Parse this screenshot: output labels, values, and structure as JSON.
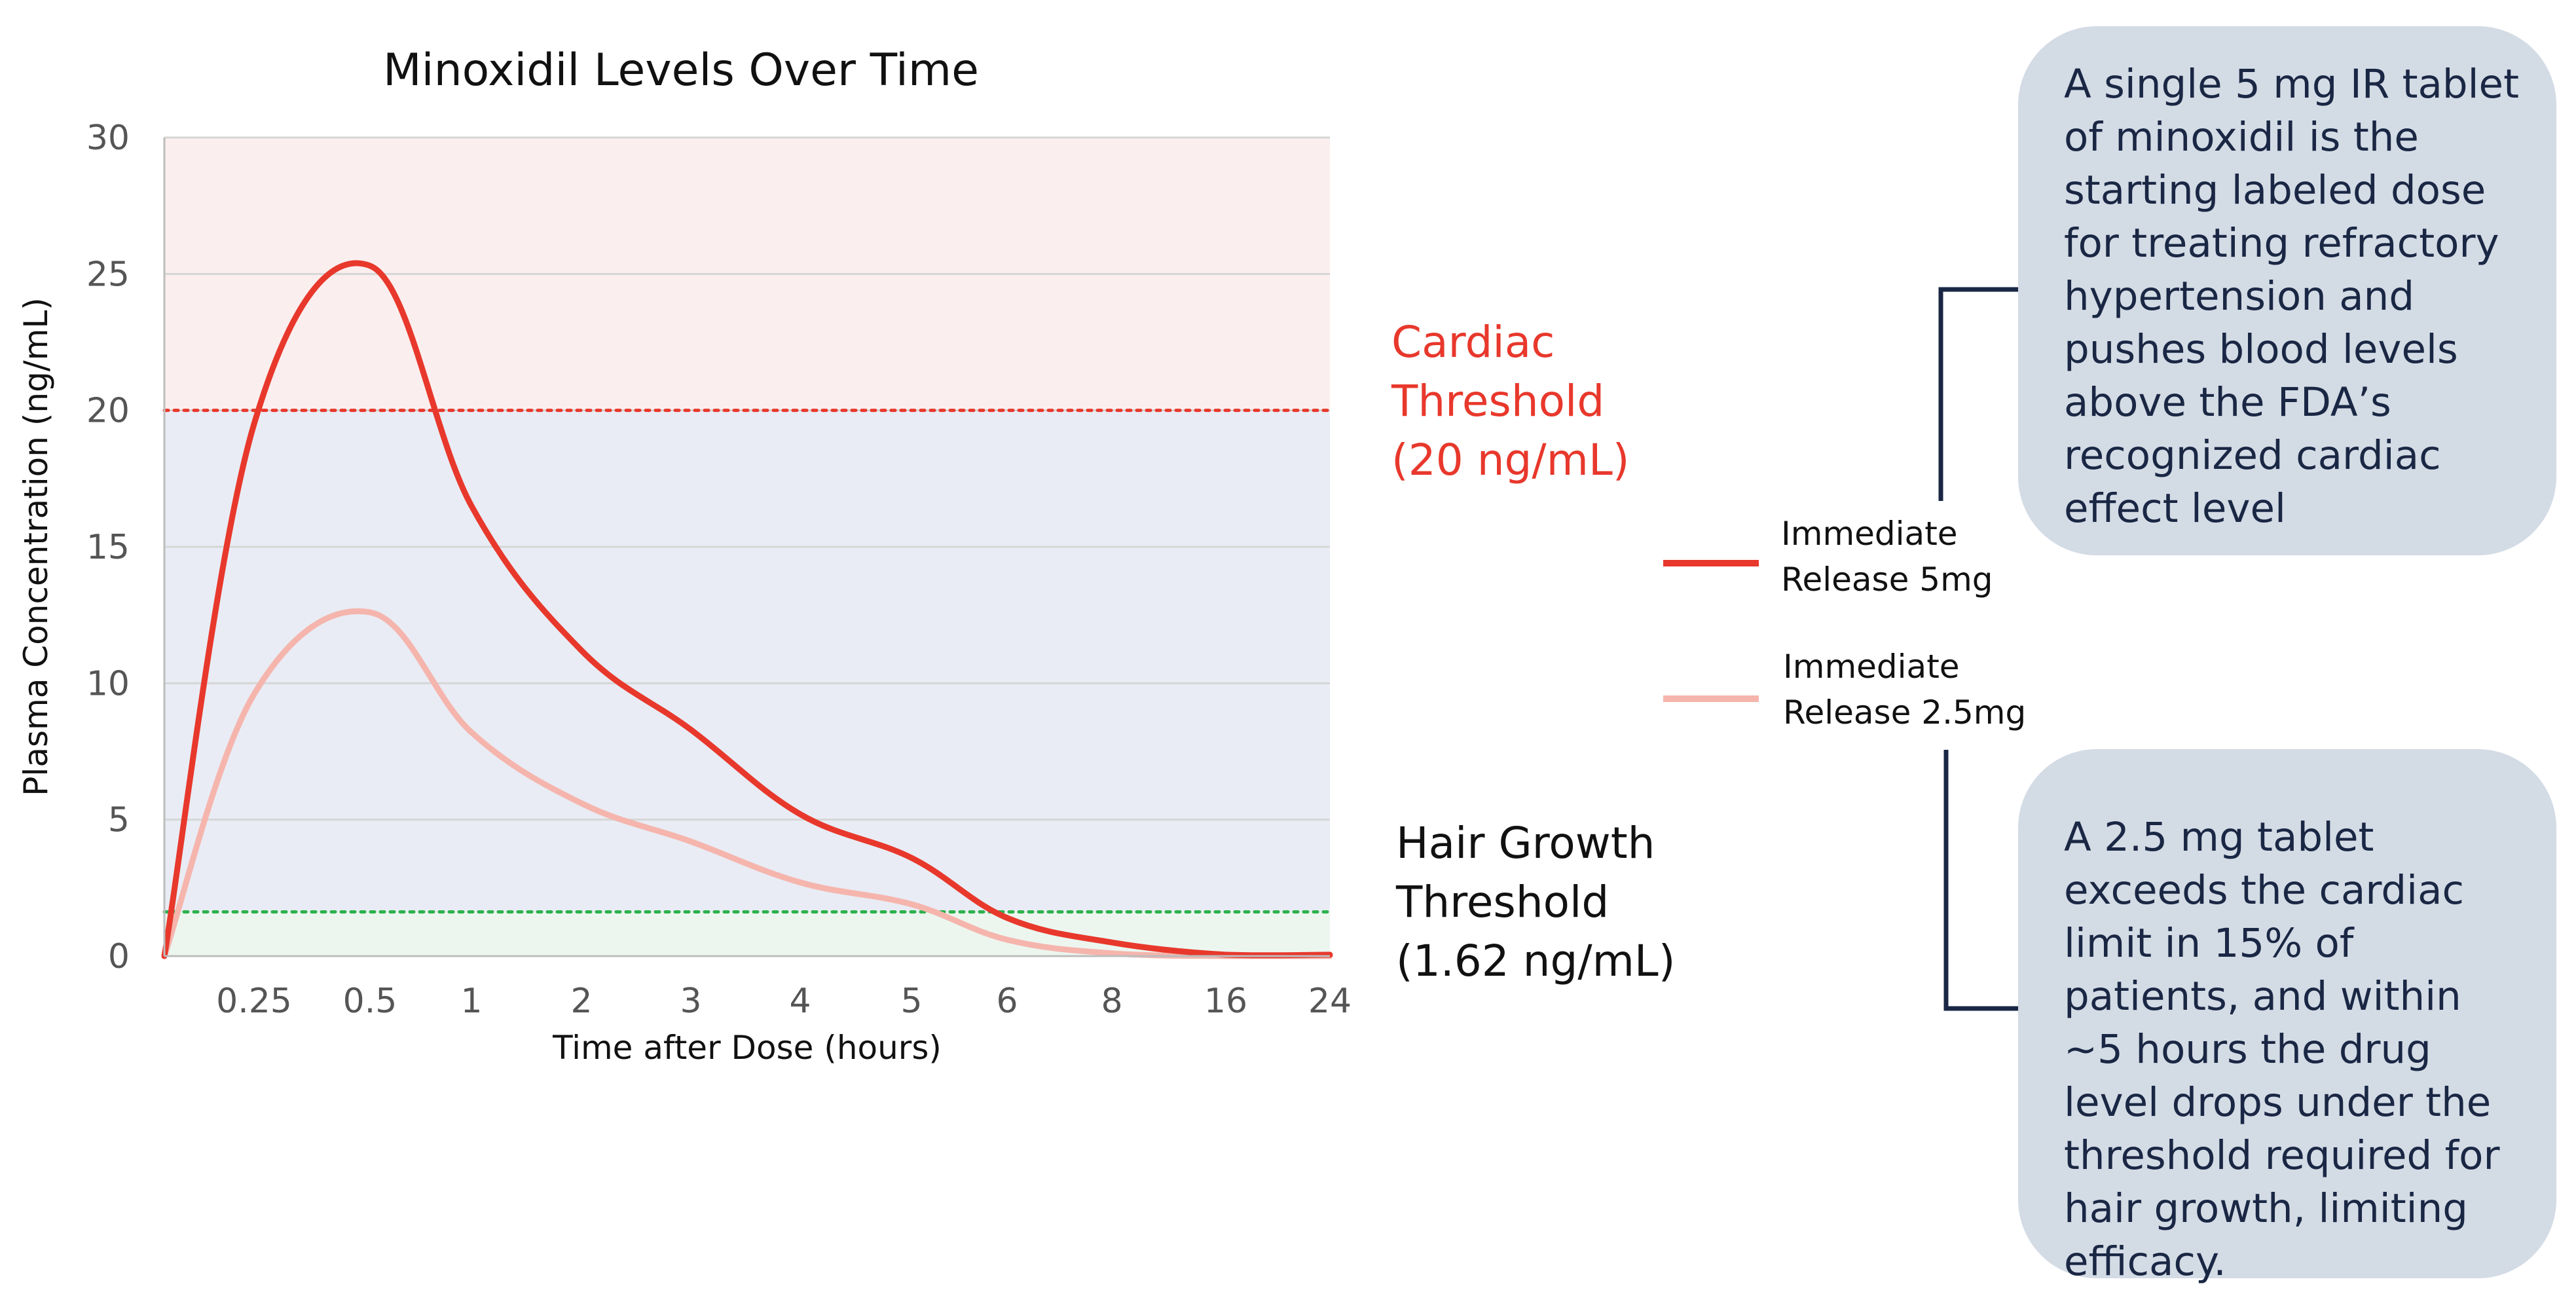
{
  "chart_data": {
    "type": "line",
    "title": "Minoxidil Levels Over Time",
    "xlabel": "Time after Dose (hours)",
    "ylabel": "Plasma Concentration (ng/mL)",
    "ylim": [
      0,
      30
    ],
    "yticks": [
      "0",
      "5",
      "10",
      "15",
      "20",
      "25",
      "30"
    ],
    "categories": [
      "0.25",
      "0.5",
      "1",
      "2",
      "3",
      "4",
      "5",
      "6",
      "8",
      "16",
      "24"
    ],
    "x_scale": "categorical (non-linear time)",
    "grid": true,
    "series": [
      {
        "name": "Immediate Release 5mg",
        "color": "#e8382c",
        "x": [
          "0",
          "0.25",
          "0.5",
          "1",
          "2",
          "3",
          "4",
          "5",
          "6",
          "8",
          "16",
          "24"
        ],
        "values": [
          0,
          19.5,
          25.3,
          16.5,
          11.2,
          8.3,
          5.2,
          3.6,
          1.4,
          0.5,
          0.05,
          0.05
        ]
      },
      {
        "name": "Immediate Release 2.5mg",
        "color": "#f5b5ad",
        "x": [
          "0",
          "0.25",
          "0.5",
          "1",
          "2",
          "3",
          "4",
          "5",
          "6",
          "8",
          "16",
          "24"
        ],
        "values": [
          0,
          9.6,
          12.6,
          8.2,
          5.6,
          4.2,
          2.7,
          1.9,
          0.6,
          0.1,
          0,
          0
        ]
      }
    ],
    "thresholds": [
      {
        "name": "cardiac",
        "value": 20,
        "color": "#e8382c",
        "label_lines": [
          "Cardiac",
          "Threshold",
          "(20 ng/mL)"
        ]
      },
      {
        "name": "hair-growth",
        "value": 1.62,
        "color": "#2db24d",
        "label_lines": [
          "Hair Growth",
          "Threshold",
          "(1.62 ng/mL)"
        ]
      }
    ],
    "bands": [
      {
        "from": 20,
        "to": 30,
        "color": "#fbeeee"
      },
      {
        "from": 1.62,
        "to": 20,
        "color": "#e9ecf4"
      },
      {
        "from": 0,
        "to": 1.62,
        "color": "#ecf6ef"
      }
    ]
  },
  "legend": {
    "items": [
      {
        "lines": [
          "Immediate",
          "Release 5mg"
        ],
        "color": "#e8382c"
      },
      {
        "lines": [
          "Immediate",
          "Release 2.5mg"
        ],
        "color": "#f5b5ad"
      }
    ]
  },
  "callouts": {
    "top": "A single 5 mg IR tablet of minoxidil is the starting labeled dose for treating refractory hypertension and pushes blood levels above the FDA’s recognized cardiac effect level",
    "bottom": "A 2.5 mg tablet exceeds the cardiac limit in 15% of patients, and within ~5 hours the drug level drops under the threshold required for hair growth, limiting efficacy.",
    "connector_color": "#1a2744"
  }
}
